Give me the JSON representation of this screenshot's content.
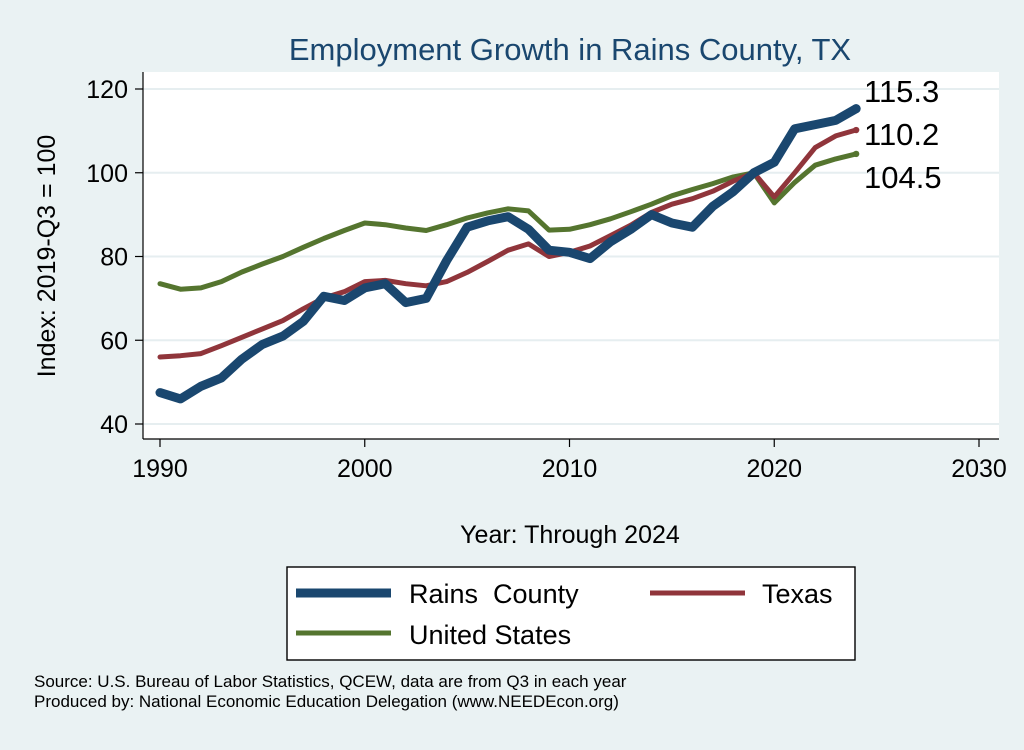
{
  "chart_data": {
    "type": "line",
    "title": "Employment Growth in Rains County, TX",
    "xlabel": "Year: Through 2024",
    "ylabel": "Index: 2019-Q3 = 100",
    "xlim": [
      1990,
      2030
    ],
    "ylim": [
      40,
      120
    ],
    "xticks": [
      1990,
      2000,
      2010,
      2020,
      2030
    ],
    "yticks": [
      40,
      60,
      80,
      100,
      120
    ],
    "grid": "horizontal",
    "legend": "bottom",
    "x": [
      1990,
      1991,
      1992,
      1993,
      1994,
      1995,
      1996,
      1997,
      1998,
      1999,
      2000,
      2001,
      2002,
      2003,
      2004,
      2005,
      2006,
      2007,
      2008,
      2009,
      2010,
      2011,
      2012,
      2013,
      2014,
      2015,
      2016,
      2017,
      2018,
      2019,
      2020,
      2021,
      2022,
      2023,
      2024
    ],
    "series": [
      {
        "name": "Rains  County",
        "color": "#1a476f",
        "values": [
          47.5,
          46,
          49,
          51,
          55.5,
          59,
          61,
          64.5,
          70.5,
          69.5,
          72.5,
          73.5,
          69,
          70,
          79,
          87,
          88.5,
          89.5,
          86.5,
          81.5,
          81,
          79.5,
          83.5,
          86.5,
          90,
          88,
          87,
          92,
          95.5,
          100,
          102.5,
          110.5,
          111.5,
          112.5,
          115.3
        ],
        "end_label": "115.3"
      },
      {
        "name": "Texas",
        "color": "#90353b",
        "values": [
          56,
          56.3,
          56.8,
          58.7,
          60.7,
          62.7,
          64.7,
          67.5,
          70.1,
          71.6,
          74,
          74.3,
          73.5,
          73,
          74,
          76.2,
          78.8,
          81.5,
          83,
          80,
          81,
          82.5,
          85,
          87.5,
          90.5,
          92.5,
          93.8,
          95.6,
          98,
          100,
          94.2,
          100,
          106,
          108.8,
          110.2
        ],
        "end_label": "110.2"
      },
      {
        "name": "United States",
        "color": "#55752f",
        "values": [
          73.5,
          72.2,
          72.5,
          74,
          76.3,
          78.2,
          80,
          82.2,
          84.3,
          86.2,
          88,
          87.6,
          86.8,
          86.2,
          87.6,
          89.2,
          90.4,
          91.4,
          90.9,
          86.3,
          86.5,
          87.6,
          89,
          90.7,
          92.5,
          94.5,
          96,
          97.4,
          99,
          100,
          92.8,
          97.7,
          101.8,
          103.3,
          104.5
        ],
        "end_label": "104.5"
      }
    ]
  },
  "notes": {
    "source": "Source: U.S. Bureau of Labor Statistics, QCEW, data are from Q3 in each year",
    "produced_by": "Produced by: National Economic Education Delegation (www.NEEDEcon.org)"
  }
}
